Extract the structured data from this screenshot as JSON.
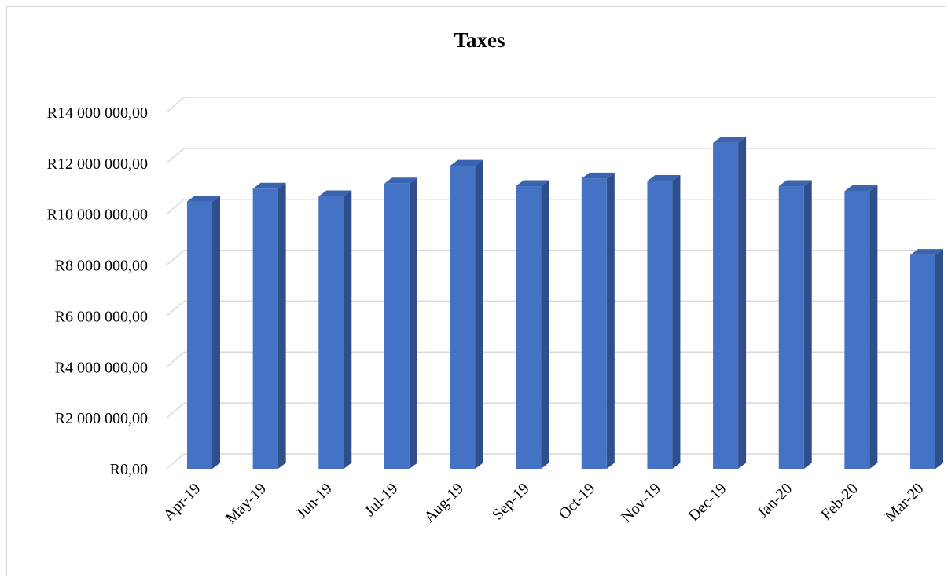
{
  "chart_data": {
    "type": "bar",
    "title": "Taxes",
    "xlabel": "",
    "ylabel": "",
    "categories": [
      "Apr-19",
      "May-19",
      "Jun-19",
      "Jul-19",
      "Aug-19",
      "Sep-19",
      "Oct-19",
      "Nov-19",
      "Dec-19",
      "Jan-20",
      "Feb-20",
      "Mar-20"
    ],
    "series": [
      {
        "values": [
          10500000,
          11000000,
          10700000,
          11200000,
          11900000,
          11100000,
          11400000,
          11300000,
          12800000,
          11100000,
          10900000,
          8400000
        ]
      }
    ],
    "ylim": [
      0,
      14000000
    ],
    "yticks": [
      0,
      2000000,
      4000000,
      6000000,
      8000000,
      10000000,
      12000000,
      14000000
    ],
    "ytick_labels": [
      "R0,00",
      "R2 000 000,00",
      "R4 000 000,00",
      "R6 000 000,00",
      "R8 000 000,00",
      "R10 000 000,00",
      "R12 000 000,00",
      "R14 000 000,00"
    ],
    "grid": true,
    "legend": "none",
    "colors": {
      "bar_front": "#4472c4",
      "bar_side": "#2f4f8c",
      "bar_top": "#3a64b0",
      "grid": "#d9d9d9"
    }
  }
}
